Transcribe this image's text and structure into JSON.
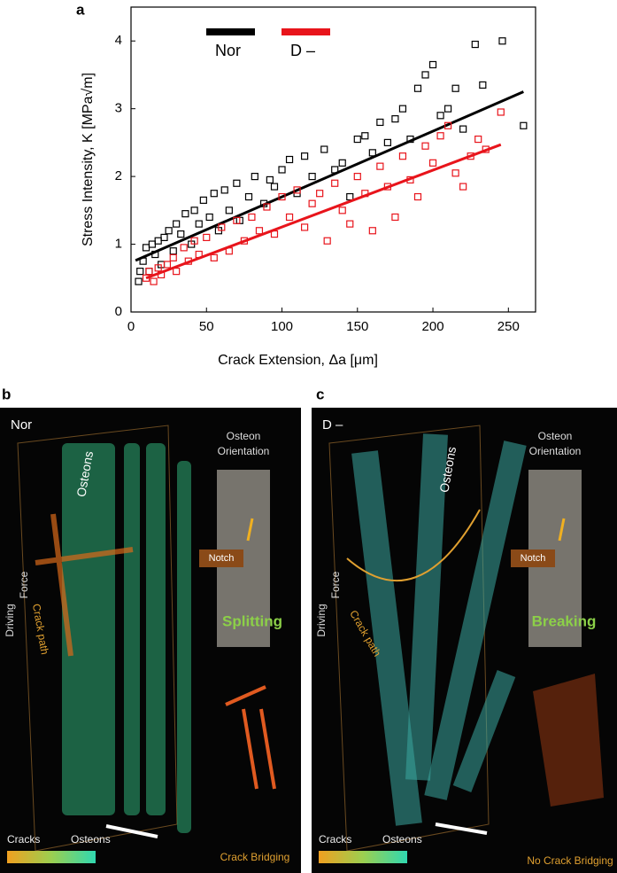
{
  "chart_data": {
    "type": "scatter",
    "panel_label": "a",
    "x_label": "Crack Extension, Δa [μm]",
    "y_label": "Stress Intensity, K [MPa√m]",
    "xlim": [
      0,
      268
    ],
    "ylim": [
      0,
      4.5
    ],
    "xticks": [
      0,
      50,
      100,
      150,
      200,
      250
    ],
    "yticks": [
      0,
      1,
      2,
      3,
      4
    ],
    "series": [
      {
        "name": "Nor",
        "color": "#000000",
        "x": [
          5,
          6,
          8,
          10,
          12,
          14,
          16,
          18,
          20,
          22,
          25,
          28,
          30,
          33,
          36,
          40,
          42,
          45,
          48,
          52,
          55,
          58,
          62,
          65,
          70,
          72,
          78,
          82,
          88,
          92,
          95,
          100,
          105,
          110,
          115,
          120,
          128,
          135,
          140,
          145,
          150,
          155,
          160,
          165,
          170,
          175,
          180,
          185,
          190,
          195,
          200,
          205,
          210,
          215,
          220,
          228,
          233,
          246,
          260
        ],
        "values": [
          0.45,
          0.6,
          0.75,
          0.95,
          0.6,
          1.0,
          0.85,
          1.05,
          0.7,
          1.1,
          1.2,
          0.9,
          1.3,
          1.15,
          1.45,
          1.0,
          1.5,
          1.3,
          1.65,
          1.4,
          1.75,
          1.2,
          1.8,
          1.5,
          1.9,
          1.35,
          1.7,
          2.0,
          1.6,
          1.95,
          1.85,
          2.1,
          2.25,
          1.75,
          2.3,
          2.0,
          2.4,
          2.1,
          2.2,
          1.7,
          2.55,
          2.6,
          2.35,
          2.8,
          2.5,
          2.85,
          3.0,
          2.55,
          3.3,
          3.5,
          3.65,
          2.9,
          3.0,
          3.3,
          2.7,
          3.95,
          3.35,
          4.0,
          2.75
        ],
        "fit": {
          "x": [
            3,
            260
          ],
          "values": [
            0.76,
            3.25
          ]
        }
      },
      {
        "name": "D –",
        "color": "#e8141b",
        "x": [
          10,
          12,
          15,
          18,
          20,
          24,
          28,
          30,
          35,
          38,
          42,
          45,
          50,
          55,
          60,
          65,
          70,
          75,
          80,
          85,
          90,
          95,
          100,
          105,
          110,
          115,
          120,
          125,
          130,
          135,
          140,
          145,
          150,
          155,
          160,
          165,
          170,
          175,
          180,
          185,
          190,
          195,
          200,
          205,
          210,
          215,
          220,
          225,
          230,
          235,
          245
        ],
        "values": [
          0.5,
          0.6,
          0.45,
          0.65,
          0.55,
          0.7,
          0.8,
          0.6,
          0.95,
          0.75,
          1.05,
          0.85,
          1.1,
          0.8,
          1.25,
          0.9,
          1.35,
          1.05,
          1.4,
          1.2,
          1.55,
          1.15,
          1.7,
          1.4,
          1.8,
          1.25,
          1.6,
          1.75,
          1.05,
          1.9,
          1.5,
          1.3,
          2.0,
          1.75,
          1.2,
          2.15,
          1.85,
          1.4,
          2.3,
          1.95,
          1.7,
          2.45,
          2.2,
          2.6,
          2.75,
          2.05,
          1.85,
          2.3,
          2.55,
          2.4,
          2.95
        ],
        "fit": {
          "x": [
            10,
            245
          ],
          "values": [
            0.5,
            2.47
          ]
        }
      }
    ]
  },
  "panels": [
    {
      "label": "b",
      "sample": "Nor",
      "osteons": "Osteons",
      "orientation": [
        "Osteon",
        "Orientation"
      ],
      "notch": "Notch",
      "force": [
        "Driving",
        "Force"
      ],
      "crack_path": "Crack path",
      "mode": "Splitting",
      "bridging": "Crack Bridging",
      "colorbar": [
        "Cracks",
        "Osteons"
      ]
    },
    {
      "label": "c",
      "sample": "D –",
      "osteons": "Osteons",
      "orientation": [
        "Osteon",
        "Orientation"
      ],
      "notch": "Notch",
      "force": [
        "Driving",
        "Force"
      ],
      "crack_path": "Crack path",
      "mode": "Breaking",
      "bridging": "No Crack Bridging",
      "colorbar": [
        "Cracks",
        "Osteons"
      ]
    }
  ]
}
